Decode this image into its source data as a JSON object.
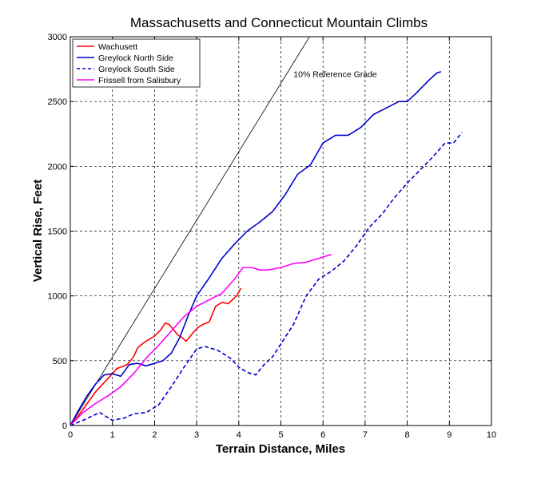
{
  "chart_data": {
    "type": "line",
    "title": "Massachusetts and Connecticut Mountain Climbs",
    "xlabel": "Terrain Distance, Miles",
    "ylabel": "Vertical Rise, Feet",
    "xlim": [
      0,
      10
    ],
    "ylim": [
      0,
      3000
    ],
    "xticks": [
      "0",
      "1",
      "2",
      "3",
      "4",
      "5",
      "6",
      "7",
      "8",
      "9",
      "10"
    ],
    "yticks": [
      "0",
      "500",
      "1000",
      "1500",
      "2000",
      "2500",
      "3000"
    ],
    "grid": true,
    "legend_position": "top-left",
    "annotations": [
      {
        "text": "10% Reference Grade",
        "x": 5.3,
        "y": 2690
      }
    ],
    "reference_line": {
      "x": [
        0,
        5.68
      ],
      "y": [
        0,
        3000
      ],
      "color": "#000000"
    },
    "series": [
      {
        "name": "Wachusett",
        "color": "#ff0000",
        "style": "solid",
        "x": [
          0,
          0.2,
          0.4,
          0.6,
          0.8,
          1.0,
          1.1,
          1.2,
          1.35,
          1.5,
          1.6,
          1.75,
          1.9,
          2.0,
          2.15,
          2.25,
          2.35,
          2.45,
          2.55,
          2.65,
          2.75,
          2.85,
          2.95,
          3.05,
          3.15,
          3.3,
          3.45,
          3.6,
          3.75,
          3.85,
          3.95,
          4.05
        ],
        "y": [
          0,
          80,
          170,
          260,
          330,
          400,
          440,
          450,
          470,
          530,
          600,
          640,
          670,
          690,
          740,
          790,
          780,
          740,
          700,
          680,
          650,
          690,
          730,
          760,
          780,
          800,
          920,
          950,
          940,
          970,
          1000,
          1060
        ]
      },
      {
        "name": "Greylock North Side",
        "color": "#0000cc",
        "style": "solid",
        "x": [
          0,
          0.2,
          0.4,
          0.6,
          0.8,
          1.0,
          1.2,
          1.4,
          1.6,
          1.8,
          2.0,
          2.2,
          2.4,
          2.6,
          2.8,
          3.0,
          3.3,
          3.6,
          3.9,
          4.2,
          4.5,
          4.8,
          5.1,
          5.4,
          5.7,
          6.0,
          6.3,
          6.6,
          6.9,
          7.2,
          7.5,
          7.8,
          8.0,
          8.2,
          8.5,
          8.7,
          8.8
        ],
        "y": [
          0,
          120,
          230,
          320,
          390,
          400,
          380,
          470,
          480,
          460,
          480,
          500,
          560,
          680,
          850,
          1000,
          1140,
          1290,
          1400,
          1500,
          1570,
          1650,
          1780,
          1940,
          2010,
          2180,
          2240,
          2240,
          2300,
          2400,
          2450,
          2500,
          2500,
          2560,
          2660,
          2720,
          2730
        ]
      },
      {
        "name": "Greylock South Side",
        "color": "#0000cc",
        "style": "dashed",
        "x": [
          0,
          0.3,
          0.5,
          0.7,
          0.9,
          1.0,
          1.3,
          1.5,
          1.8,
          2.1,
          2.4,
          2.7,
          3.0,
          3.2,
          3.5,
          3.8,
          4.0,
          4.2,
          4.4,
          4.6,
          4.8,
          5.0,
          5.3,
          5.6,
          5.9,
          6.2,
          6.5,
          6.8,
          7.1,
          7.4,
          7.7,
          8.0,
          8.3,
          8.6,
          8.9,
          9.1,
          9.3
        ],
        "y": [
          0,
          40,
          70,
          100,
          60,
          40,
          60,
          90,
          100,
          160,
          300,
          450,
          590,
          610,
          580,
          520,
          450,
          410,
          390,
          470,
          530,
          630,
          780,
          1000,
          1130,
          1190,
          1270,
          1390,
          1530,
          1630,
          1760,
          1870,
          1970,
          2070,
          2180,
          2180,
          2260
        ]
      },
      {
        "name": "Frissell from Salisbury",
        "color": "#ff00ff",
        "style": "solid",
        "x": [
          0,
          0.3,
          0.6,
          0.9,
          1.2,
          1.5,
          1.8,
          2.1,
          2.4,
          2.7,
          3.0,
          3.3,
          3.6,
          3.9,
          4.1,
          4.3,
          4.5,
          4.7,
          5.0,
          5.3,
          5.6,
          5.9,
          6.2
        ],
        "y": [
          0,
          100,
          170,
          230,
          300,
          400,
          520,
          620,
          730,
          840,
          920,
          970,
          1020,
          1130,
          1220,
          1220,
          1200,
          1200,
          1220,
          1250,
          1260,
          1290,
          1320
        ]
      }
    ]
  }
}
